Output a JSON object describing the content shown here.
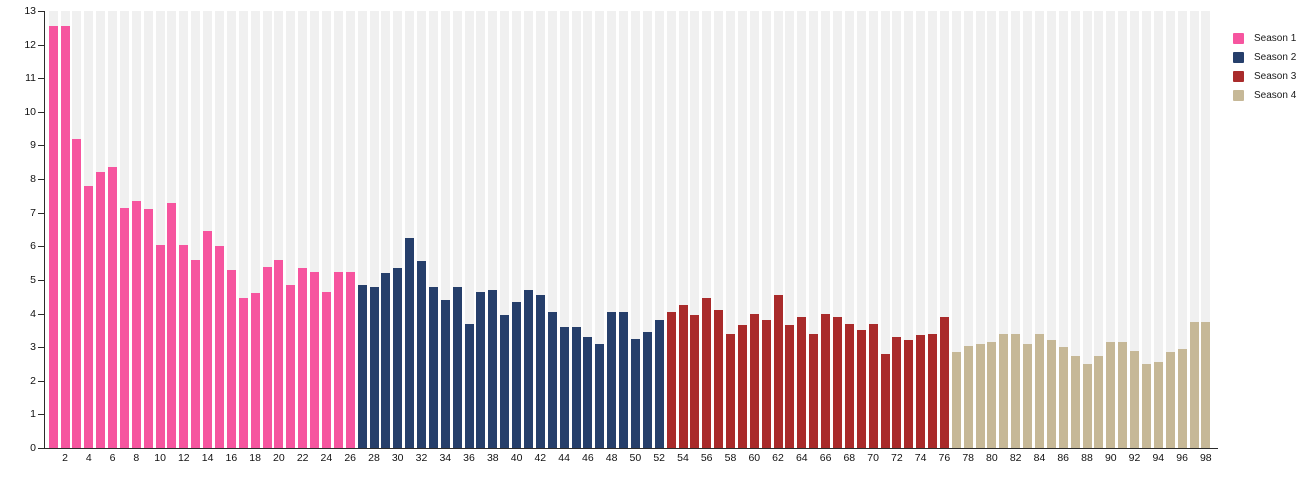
{
  "chart_data": {
    "type": "bar",
    "title": "",
    "xlabel": "",
    "ylabel": "",
    "x_unit": "episode-number",
    "ylim": [
      0,
      13
    ],
    "y_ticks": [
      0,
      1,
      2,
      3,
      4,
      5,
      6,
      7,
      8,
      9,
      10,
      11,
      12,
      13
    ],
    "x_tick_labels": [
      2,
      4,
      6,
      8,
      10,
      12,
      14,
      16,
      18,
      20,
      22,
      24,
      26,
      28,
      30,
      32,
      34,
      36,
      38,
      40,
      42,
      44,
      46,
      48,
      50,
      52,
      54,
      56,
      58,
      60,
      62,
      64,
      66,
      68,
      70,
      72,
      74,
      76,
      78,
      80,
      82,
      84,
      86,
      88,
      90,
      92,
      94,
      96,
      98
    ],
    "grid": "vertical-background-stripes",
    "legend_position": "top-right",
    "series": [
      {
        "name": "Season 1",
        "color": "#f6559f",
        "start_x": 1,
        "values": [
          12.55,
          12.55,
          9.2,
          7.8,
          8.2,
          8.35,
          7.15,
          7.35,
          7.1,
          6.05,
          7.3,
          6.05,
          5.6,
          6.45,
          6.0,
          5.3,
          4.45,
          4.6,
          5.4,
          5.6,
          4.85,
          5.35,
          5.25,
          4.65,
          5.25,
          5.25
        ]
      },
      {
        "name": "Season 2",
        "color": "#263f6b",
        "start_x": 27,
        "values": [
          4.85,
          4.8,
          5.2,
          5.35,
          6.25,
          5.55,
          4.8,
          4.4,
          4.8,
          3.7,
          4.65,
          4.7,
          3.95,
          4.35,
          4.7,
          4.55,
          4.05,
          3.6,
          3.6,
          3.3,
          3.1,
          4.05,
          4.05,
          3.25,
          3.45,
          3.8
        ]
      },
      {
        "name": "Season 3",
        "color": "#a92b2b",
        "start_x": 53,
        "values": [
          4.05,
          4.25,
          3.95,
          4.45,
          4.1,
          3.4,
          3.65,
          4.0,
          3.8,
          4.55,
          3.65,
          3.9,
          3.4,
          4.0,
          3.9,
          3.7,
          3.5,
          3.7,
          2.8,
          3.3,
          3.2,
          3.35,
          3.4,
          3.9
        ]
      },
      {
        "name": "Season 4",
        "color": "#c6b897",
        "start_x": 77,
        "values": [
          2.85,
          3.05,
          3.1,
          3.15,
          3.4,
          3.4,
          3.1,
          3.4,
          3.2,
          3.0,
          2.75,
          2.5,
          2.75,
          3.15,
          3.15,
          2.9,
          2.5,
          2.55,
          2.85,
          2.95,
          3.75,
          3.75
        ]
      }
    ]
  },
  "legend": {
    "items": [
      {
        "label": "Season 1",
        "color": "#f6559f"
      },
      {
        "label": "Season 2",
        "color": "#263f6b"
      },
      {
        "label": "Season 3",
        "color": "#a92b2b"
      },
      {
        "label": "Season 4",
        "color": "#c6b897"
      }
    ]
  },
  "colors": {
    "background": "#ffffff",
    "stripe": "#f0f0f0",
    "axis": "#2b2b2b",
    "tick_text": "#111111",
    "legend_text": "#1a1a1a"
  }
}
